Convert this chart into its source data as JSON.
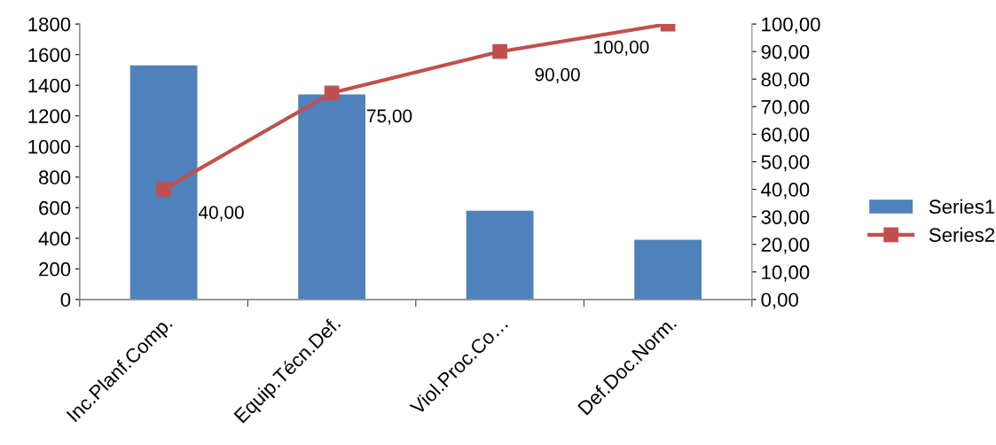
{
  "chart_data": {
    "type": "bar",
    "categories": [
      "Inc.Planf.Comp.",
      "Equip.Técn.Def.",
      "Viol.Proc.Co…",
      "Def.Doc.Norm."
    ],
    "series": [
      {
        "name": "Series1",
        "color": "#4f81bd",
        "values": [
          1530,
          1340,
          580,
          390
        ]
      },
      {
        "name": "Series2",
        "color": "#c0504d",
        "type": "line",
        "axis": "y2",
        "marker": "square",
        "values": [
          40,
          75,
          90,
          100
        ],
        "value_labels": [
          "40,00",
          "75,00",
          "90,00",
          "100,00"
        ]
      }
    ],
    "ylim": [
      0,
      1800
    ],
    "yticks": [
      0,
      200,
      400,
      600,
      800,
      1000,
      1200,
      1400,
      1600,
      1800
    ],
    "y2lim": [
      0,
      100
    ],
    "y2ticks": [
      {
        "value": 0,
        "label": "0,00"
      },
      {
        "value": 10,
        "label": "10,00"
      },
      {
        "value": 20,
        "label": "20,00"
      },
      {
        "value": 30,
        "label": "30,00"
      },
      {
        "value": 40,
        "label": "40,00"
      },
      {
        "value": 50,
        "label": "50,00"
      },
      {
        "value": 60,
        "label": "60,00"
      },
      {
        "value": 70,
        "label": "70,00"
      },
      {
        "value": 80,
        "label": "80,00"
      },
      {
        "value": 90,
        "label": "90,00"
      },
      {
        "value": 100,
        "label": "100,00"
      }
    ],
    "grid": false,
    "legend": "right"
  }
}
